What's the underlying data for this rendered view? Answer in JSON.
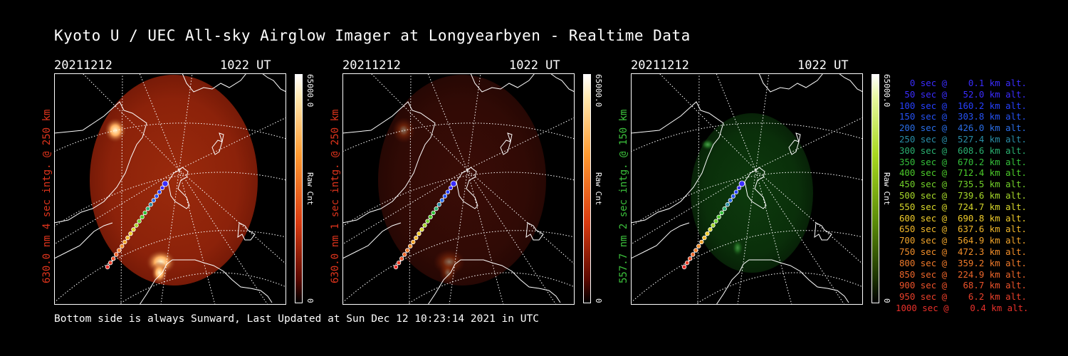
{
  "title": "Kyoto U / UEC All-sky Airglow Imager at Longyearbyen - Realtime Data",
  "panels": [
    {
      "date": "20211212",
      "time": "1022 UT",
      "label": "630.0 nm 4 sec intg. @ 250 km",
      "label_color": "#e0341c",
      "cbar_max": "65000.0",
      "cbar_min": "0",
      "cbar_unit": "Raw Cnt",
      "color_map": "red",
      "image_brightness": "bright"
    },
    {
      "date": "20211212",
      "time": "1022 UT",
      "label": "630.0 nm 1 sec intg. @ 250 km",
      "label_color": "#e0341c",
      "cbar_max": "65000.0",
      "cbar_min": "0",
      "cbar_unit": "Raw Cnt",
      "color_map": "red",
      "image_brightness": "dim"
    },
    {
      "date": "20211212",
      "time": "1022 UT",
      "label": "557.7 nm 2 sec intg. @ 150 km",
      "label_color": "#3cc23c",
      "cbar_max": "65000.0",
      "cbar_min": "0",
      "cbar_unit": "Raw Cnt",
      "color_map": "green",
      "image_brightness": "dim"
    }
  ],
  "legend": [
    {
      "text": "0 sec @    0.1 km alt.",
      "color": "#3a2cff"
    },
    {
      "text": "50 sec @   52.0 km alt.",
      "color": "#3a2cff"
    },
    {
      "text": "100 sec @  160.2 km alt.",
      "color": "#2640ff"
    },
    {
      "text": "150 sec @  303.8 km alt.",
      "color": "#2552f5"
    },
    {
      "text": "200 sec @  426.0 km alt.",
      "color": "#2a6ee8"
    },
    {
      "text": "250 sec @  527.4 km alt.",
      "color": "#2a8ea8"
    },
    {
      "text": "300 sec @  608.6 km alt.",
      "color": "#2ab070"
    },
    {
      "text": "350 sec @  670.2 km alt.",
      "color": "#34c03a"
    },
    {
      "text": "400 sec @  712.4 km alt.",
      "color": "#4ccc2a"
    },
    {
      "text": "450 sec @  735.5 km alt.",
      "color": "#72d22a"
    },
    {
      "text": "500 sec @  739.6 km alt.",
      "color": "#a6d82a"
    },
    {
      "text": "550 sec @  724.7 km alt.",
      "color": "#d8d82a"
    },
    {
      "text": "600 sec @  690.8 km alt.",
      "color": "#f0cc2a"
    },
    {
      "text": "650 sec @  637.6 km alt.",
      "color": "#f2b82a"
    },
    {
      "text": "700 sec @  564.9 km alt.",
      "color": "#f2a42a"
    },
    {
      "text": "750 sec @  472.3 km alt.",
      "color": "#f28e2a"
    },
    {
      "text": "800 sec @  359.2 km alt.",
      "color": "#f07a2a"
    },
    {
      "text": "850 sec @  224.9 km alt.",
      "color": "#ee662a"
    },
    {
      "text": "900 sec @   68.7 km alt.",
      "color": "#ec522a"
    },
    {
      "text": "950 sec @    6.2 km alt.",
      "color": "#ea402a"
    },
    {
      "text": "1000 sec @    0.4 km alt.",
      "color": "#e8302a"
    }
  ],
  "footer": "Bottom side is always Sunward, Last Updated at Sun Dec 12 10:23:14 2021 in UTC"
}
